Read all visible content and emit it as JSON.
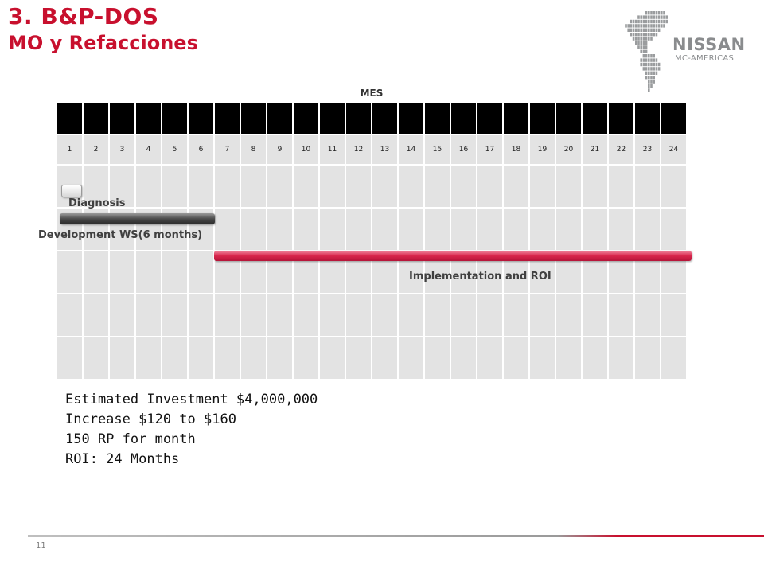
{
  "header": {
    "title": "3. B&P-DOS",
    "subtitle": "MO y Refacciones"
  },
  "logo": {
    "brand": "NISSAN",
    "region": "MC-AMERICAS",
    "icon": "americas-map-icon"
  },
  "gantt": {
    "axis_label": "MES",
    "months": [
      "1",
      "2",
      "3",
      "4",
      "5",
      "6",
      "7",
      "8",
      "9",
      "10",
      "11",
      "12",
      "13",
      "14",
      "15",
      "16",
      "17",
      "18",
      "19",
      "20",
      "21",
      "22",
      "23",
      "24"
    ],
    "tasks": [
      {
        "label": "Diagnosis",
        "start_month": 1,
        "end_month": 1,
        "color": "#f2f2f2"
      },
      {
        "label": "Development WS(6 months)",
        "start_month": 1,
        "end_month": 6,
        "color": "#3a3a3a"
      },
      {
        "label": "Implementation and ROI",
        "start_month": 7,
        "end_month": 24,
        "color": "#d8264c"
      }
    ]
  },
  "summary": {
    "line1": "Estimated Investment $4,000,000",
    "line2": "Increase $120 to $160",
    "line3": "150 RP for month",
    "line4": "ROI: 24 Months"
  },
  "footer": {
    "page_number": "11"
  },
  "colors": {
    "title": "#c8102e",
    "accent_red": "#d8264c",
    "grid_cell": "#e3e3e3",
    "logo_gray": "#8a8c8e"
  }
}
